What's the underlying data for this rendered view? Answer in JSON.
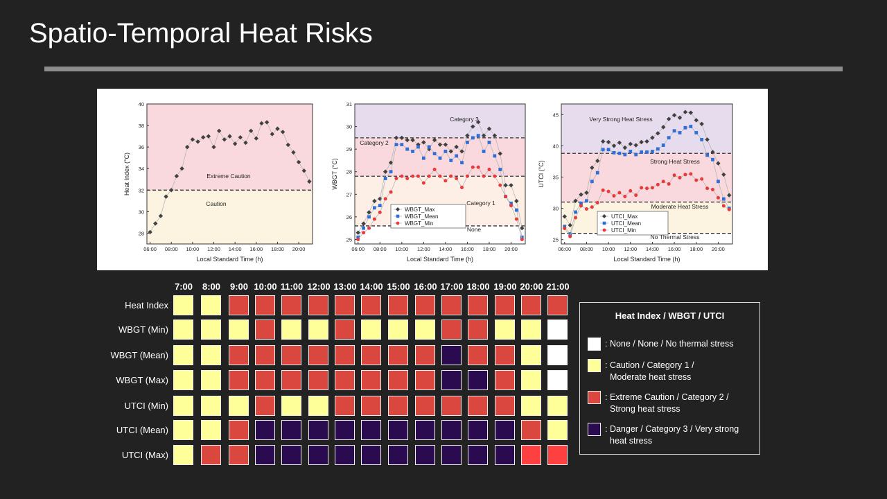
{
  "slide": {
    "title": "Spatio-Temporal Heat Risks"
  },
  "colors": {
    "none": "#ffffff",
    "caution": "#ffff99",
    "extreme": "#d9473f",
    "danger": "#2a0b50",
    "bright_red": "#ff4040"
  },
  "chart_data": [
    {
      "type": "line",
      "xlabel": "Local Standard Time (h)",
      "ylabel": "Heat Index (°C)",
      "ylim": [
        27,
        40
      ],
      "yticks": [
        28,
        30,
        32,
        34,
        36,
        38,
        40
      ],
      "xticks": [
        "06:00",
        "08:00",
        "10:00",
        "12:00",
        "14:00",
        "16:00",
        "18:00",
        "20:00"
      ],
      "threshold_lines": [
        32
      ],
      "zones": [
        {
          "label": "Extreme Caution",
          "from": 32,
          "to": 40,
          "color": "#f9d9dd"
        },
        {
          "label": "Caution",
          "from": 27,
          "to": 32,
          "color": "#fcf4e0"
        }
      ],
      "series": [
        {
          "color": "#404040",
          "marker": "diamond",
          "x": [
            6.0,
            6.5,
            7.0,
            7.5,
            8.0,
            8.5,
            9.0,
            9.5,
            10.0,
            10.5,
            11.0,
            11.5,
            12.0,
            12.5,
            13.0,
            13.5,
            14.0,
            14.5,
            15.0,
            15.5,
            16.0,
            16.5,
            17.0,
            17.5,
            18.0,
            18.5,
            19.0,
            19.5,
            20.0,
            20.5,
            21.0
          ],
          "y": [
            28.1,
            28.9,
            29.6,
            31.4,
            32.0,
            33.3,
            34.0,
            36.0,
            36.7,
            36.5,
            36.9,
            37.0,
            36.0,
            37.5,
            36.7,
            37.0,
            36.3,
            36.9,
            36.4,
            37.5,
            36.8,
            38.2,
            38.3,
            37.2,
            37.7,
            37.4,
            36.2,
            35.5,
            34.6,
            33.8,
            32.8
          ]
        }
      ]
    },
    {
      "type": "line",
      "xlabel": "Local Standard Time (h)",
      "ylabel": "WBGT (°C)",
      "ylim": [
        24.8,
        31
      ],
      "yticks": [
        25,
        26,
        27,
        28,
        29,
        30,
        31
      ],
      "xticks": [
        "06:00",
        "08:00",
        "10:00",
        "12:00",
        "14:00",
        "16:00",
        "18:00",
        "20:00"
      ],
      "threshold_lines": [
        25.6,
        27.8,
        29.5
      ],
      "zones": [
        {
          "label": "Category 3",
          "from": 29.5,
          "to": 31,
          "color": "#e6dced"
        },
        {
          "label": "Category 2",
          "from": 27.8,
          "to": 29.5,
          "color": "#f9d9dd"
        },
        {
          "label": "Category 1",
          "from": 25.6,
          "to": 27.8,
          "color": "#fdefe6"
        },
        {
          "label": "None",
          "from": 24.8,
          "to": 25.6,
          "color": "#ffffff"
        }
      ],
      "series": [
        {
          "name": "WBGT_Max",
          "color": "#404040",
          "marker": "diamond",
          "x": [
            6.0,
            6.5,
            7.0,
            7.5,
            8.0,
            8.5,
            9.0,
            9.5,
            10.0,
            10.5,
            11.0,
            11.5,
            12.0,
            12.5,
            13.0,
            13.5,
            14.0,
            14.5,
            15.0,
            15.5,
            16.0,
            16.5,
            17.0,
            17.5,
            18.0,
            18.5,
            19.0,
            19.5,
            20.0,
            20.5,
            21.0
          ],
          "y": [
            25.3,
            25.7,
            26.2,
            26.7,
            26.8,
            28.0,
            28.4,
            29.5,
            29.5,
            29.4,
            29.4,
            29.2,
            29.3,
            29.0,
            29.4,
            29.2,
            29.2,
            28.9,
            29.1,
            28.9,
            29.6,
            30.0,
            30.2,
            29.6,
            29.9,
            29.6,
            28.8,
            27.4,
            27.4,
            26.7,
            25.5
          ]
        },
        {
          "name": "WBGT_Mean",
          "color": "#2f6fd6",
          "marker": "square",
          "x": [
            6.0,
            6.5,
            7.0,
            7.5,
            8.0,
            8.5,
            9.0,
            9.5,
            10.0,
            10.5,
            11.0,
            11.5,
            12.0,
            12.5,
            13.0,
            13.5,
            14.0,
            14.5,
            15.0,
            15.5,
            16.0,
            16.5,
            17.0,
            17.5,
            18.0,
            18.5,
            19.0,
            19.5,
            20.0,
            20.5,
            21.0
          ],
          "y": [
            25.1,
            25.5,
            26.0,
            26.4,
            26.5,
            27.7,
            28.0,
            29.2,
            29.2,
            29.0,
            28.9,
            29.1,
            28.6,
            29.1,
            28.8,
            28.6,
            28.9,
            28.5,
            28.7,
            28.4,
            29.3,
            29.5,
            29.6,
            28.9,
            29.3,
            28.7,
            28.1,
            26.9,
            26.6,
            26.3,
            25.1
          ]
        },
        {
          "name": "WBGT_Min",
          "color": "#e83a3a",
          "marker": "circle",
          "x": [
            6.0,
            6.5,
            7.0,
            7.5,
            8.0,
            8.5,
            9.0,
            9.5,
            10.0,
            10.5,
            11.0,
            11.5,
            12.0,
            12.5,
            13.0,
            13.5,
            14.0,
            14.5,
            15.0,
            15.5,
            16.0,
            16.5,
            17.0,
            17.5,
            18.0,
            18.5,
            19.0,
            19.5,
            20.0,
            20.5,
            21.0
          ],
          "y": [
            25.0,
            25.3,
            25.5,
            25.9,
            26.2,
            26.8,
            27.1,
            27.7,
            27.8,
            27.7,
            27.8,
            27.8,
            27.5,
            27.8,
            28.1,
            27.8,
            27.6,
            27.8,
            27.7,
            27.3,
            27.8,
            28.2,
            28.2,
            27.8,
            28.1,
            27.8,
            27.4,
            26.9,
            26.5,
            25.9,
            25.0
          ]
        }
      ]
    },
    {
      "type": "line",
      "xlabel": "Local Standard Time (h)",
      "ylabel": "UTCI (°C)",
      "ylim": [
        24.3,
        46.7
      ],
      "yticks": [
        25,
        30,
        35,
        40,
        45
      ],
      "xticks": [
        "06:00",
        "08:00",
        "10:00",
        "12:00",
        "14:00",
        "16:00",
        "18:00",
        "20:00"
      ],
      "threshold_lines": [
        26,
        31,
        38.8
      ],
      "zones": [
        {
          "label": "Very Strong Heat Stress",
          "from": 38.8,
          "to": 46.7,
          "color": "#e6dced"
        },
        {
          "label": "Strong Heat Stress",
          "from": 31,
          "to": 38.8,
          "color": "#f9d9dd"
        },
        {
          "label": "Moderate Heat Stress",
          "from": 26,
          "to": 31,
          "color": "#fcf4e0"
        },
        {
          "label": "No Thermal Stress",
          "from": 24.3,
          "to": 26,
          "color": "#ffffff"
        }
      ],
      "series": [
        {
          "name": "UTCI_Max",
          "color": "#404040",
          "marker": "diamond",
          "x": [
            6.0,
            6.5,
            7.0,
            7.5,
            8.0,
            8.5,
            9.0,
            9.5,
            10.0,
            10.5,
            11.0,
            11.5,
            12.0,
            12.5,
            13.0,
            13.5,
            14.0,
            14.5,
            15.0,
            15.5,
            16.0,
            16.5,
            17.0,
            17.5,
            18.0,
            18.5,
            19.0,
            19.5,
            20.0,
            20.5,
            21.0
          ],
          "y": [
            28.7,
            27.3,
            31.2,
            32.2,
            32.5,
            36.5,
            37.6,
            40.7,
            40.6,
            40.0,
            40.5,
            39.7,
            40.3,
            40.1,
            40.6,
            40.7,
            41.3,
            42.0,
            43.0,
            44.3,
            44.9,
            44.5,
            45.4,
            45.3,
            44.1,
            43.5,
            41.0,
            39.0,
            37.2,
            35.4,
            32.1
          ]
        },
        {
          "name": "UTCI_Mean",
          "color": "#2f6fd6",
          "marker": "square",
          "x": [
            6.0,
            6.5,
            7.0,
            7.5,
            8.0,
            8.5,
            9.0,
            9.5,
            10.0,
            10.5,
            11.0,
            11.5,
            12.0,
            12.5,
            13.0,
            13.5,
            14.0,
            14.5,
            15.0,
            15.5,
            16.0,
            16.5,
            17.0,
            17.5,
            18.0,
            18.5,
            19.0,
            19.5,
            20.0,
            20.5,
            21.0
          ],
          "y": [
            27.1,
            25.9,
            29.4,
            30.8,
            31.2,
            34.3,
            35.7,
            39.4,
            39.4,
            38.9,
            38.8,
            38.6,
            39.1,
            38.6,
            39.0,
            39.0,
            39.1,
            39.5,
            40.1,
            41.3,
            42.4,
            42.1,
            42.9,
            43.1,
            42.1,
            41.0,
            38.5,
            37.8,
            34.3,
            31.5,
            30.0
          ]
        },
        {
          "name": "UTCI_Min",
          "color": "#e83a3a",
          "marker": "circle",
          "x": [
            6.0,
            6.5,
            7.0,
            7.5,
            8.0,
            8.5,
            9.0,
            9.5,
            10.0,
            10.5,
            11.0,
            11.5,
            12.0,
            12.5,
            13.0,
            13.5,
            14.0,
            14.5,
            15.0,
            15.5,
            16.0,
            16.5,
            17.0,
            17.5,
            18.0,
            18.5,
            19.0,
            19.5,
            20.0,
            20.5,
            21.0
          ],
          "y": [
            26.8,
            25.5,
            28.5,
            30.4,
            29.9,
            30.2,
            30.9,
            32.9,
            32.7,
            32.0,
            32.5,
            31.9,
            32.8,
            32.1,
            33.3,
            33.2,
            33.3,
            33.8,
            34.3,
            33.9,
            35.3,
            34.9,
            35.4,
            35.5,
            34.5,
            34.7,
            33.2,
            33.0,
            31.7,
            30.4,
            29.8
          ]
        }
      ]
    },
    {
      "type": "heatmap",
      "columns": [
        "7:00",
        "8:00",
        "9:00",
        "10:00",
        "11:00",
        "12:00",
        "13:00",
        "14:00",
        "15:00",
        "16:00",
        "17:00",
        "18:00",
        "19:00",
        "20:00",
        "21:00"
      ],
      "rows": [
        "Heat Index",
        "WBGT (Min)",
        "WBGT (Mean)",
        "WBGT (Max)",
        "UTCI (Min)",
        "UTCI (Mean)",
        "UTCI (Max)"
      ],
      "levels_legend": {
        "0": "none",
        "1": "caution",
        "2": "extreme",
        "3": "danger",
        "4": "bright_red"
      },
      "values": [
        [
          1,
          1,
          2,
          2,
          2,
          2,
          2,
          2,
          2,
          2,
          2,
          2,
          2,
          2,
          2
        ],
        [
          1,
          1,
          1,
          2,
          1,
          1,
          2,
          1,
          1,
          1,
          2,
          2,
          1,
          1,
          0
        ],
        [
          1,
          1,
          2,
          2,
          2,
          2,
          2,
          2,
          2,
          2,
          3,
          2,
          2,
          1,
          0
        ],
        [
          1,
          1,
          2,
          2,
          2,
          2,
          2,
          2,
          2,
          2,
          3,
          3,
          2,
          1,
          0
        ],
        [
          1,
          1,
          1,
          2,
          1,
          1,
          2,
          2,
          2,
          2,
          2,
          2,
          2,
          1,
          1
        ],
        [
          1,
          1,
          2,
          3,
          3,
          3,
          3,
          3,
          3,
          3,
          3,
          3,
          3,
          2,
          1
        ],
        [
          1,
          2,
          2,
          3,
          3,
          3,
          3,
          3,
          3,
          3,
          3,
          3,
          3,
          4,
          4
        ]
      ]
    }
  ],
  "legend": {
    "title": "Heat Index / WBGT / UTCI",
    "items": [
      {
        "level": "none",
        "lines": [
          ": None / None / No thermal stress"
        ]
      },
      {
        "level": "caution",
        "lines": [
          ": Caution / Category 1 /",
          "Moderate heat stress"
        ]
      },
      {
        "level": "extreme",
        "lines": [
          ": Extreme Caution / Category 2 /",
          "Strong heat stress"
        ]
      },
      {
        "level": "danger",
        "lines": [
          ": Danger / Category 3 / Very strong",
          "heat stress"
        ]
      }
    ]
  }
}
